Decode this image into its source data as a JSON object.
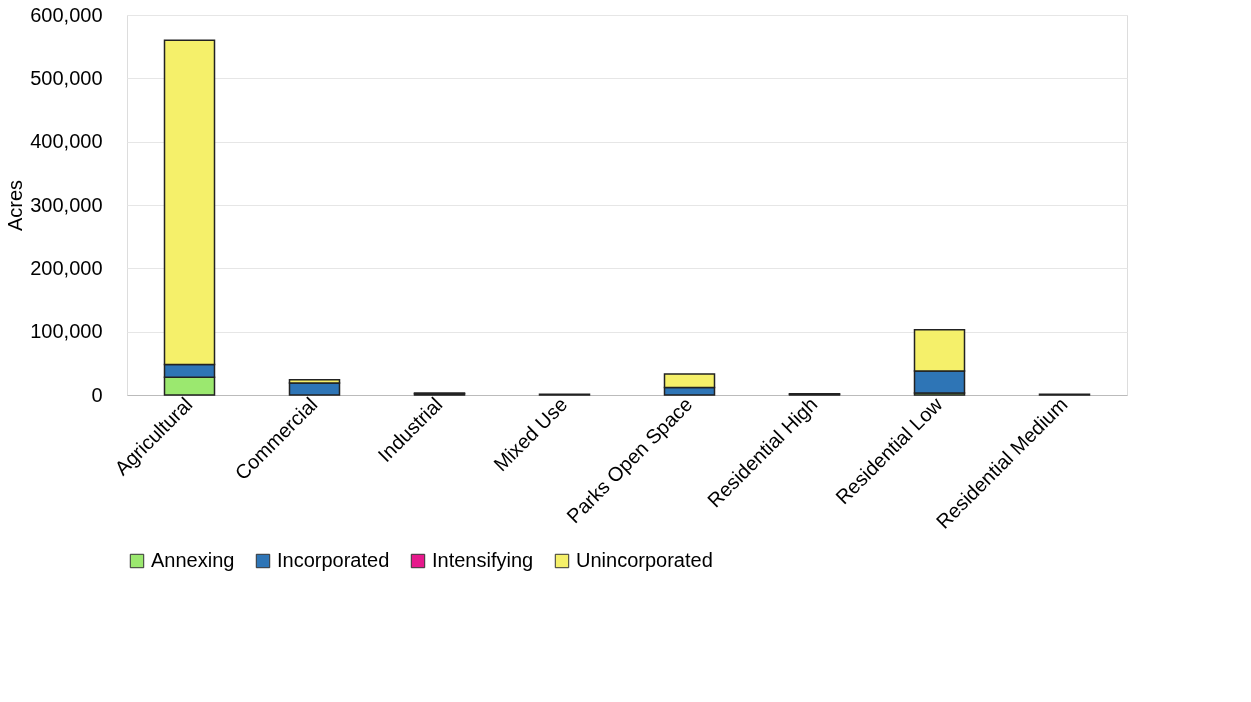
{
  "chart_data": {
    "type": "bar",
    "stacked": true,
    "ylabel": "Acres",
    "categories": [
      "Agricultural",
      "Commercial",
      "Industrial",
      "Mixed Use",
      "Parks Open Space",
      "Residential High",
      "Residential Low",
      "Residential Medium"
    ],
    "series": [
      {
        "name": "Annexing",
        "color": "#9be86f",
        "values": [
          28000,
          null,
          0,
          0,
          0,
          0,
          3000,
          0
        ]
      },
      {
        "name": "Incorporated",
        "color": "#2e75b6",
        "values": [
          20000,
          19000,
          2000,
          1000,
          12000,
          1000,
          35000,
          1000
        ]
      },
      {
        "name": "Intensifying",
        "color": "#e6198c",
        "values": [
          0,
          0,
          0,
          0,
          0,
          0,
          0,
          0
        ]
      },
      {
        "name": "Unincorporated",
        "color": "#f5f06a",
        "values": [
          512000,
          5000,
          1000,
          0,
          21000,
          1000,
          65000,
          0
        ]
      }
    ],
    "ylim": [
      0,
      600000
    ],
    "yticks": [
      0,
      {
        "value": 100000,
        "label": "100,000"
      },
      {
        "value": 200000,
        "label": "200,000"
      },
      {
        "value": 300000,
        "label": "300,000"
      },
      {
        "value": 400000,
        "label": "400,000"
      },
      {
        "value": 500000,
        "label": "500,000"
      },
      {
        "value": 600000,
        "label": "600,000"
      }
    ],
    "grid": "y",
    "legend": "bottom"
  }
}
